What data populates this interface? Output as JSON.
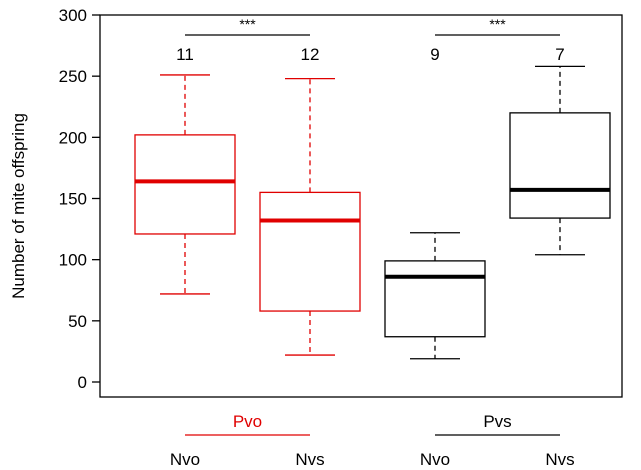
{
  "chart_data": {
    "type": "box",
    "title": "",
    "xlabel": "",
    "ylabel": "Number of mite offspring",
    "ylim": [
      0,
      300
    ],
    "yticks": [
      0,
      50,
      100,
      150,
      200,
      250,
      300
    ],
    "grid": false,
    "legend": "none",
    "boxes": [
      {
        "label": "Nvo",
        "group": "Pvo",
        "n": "11",
        "color": "#e00000",
        "whisker_low": 72,
        "q1": 121,
        "median": 164,
        "q3": 202,
        "whisker_high": 251
      },
      {
        "label": "Nvs",
        "group": "Pvo",
        "n": "12",
        "color": "#e00000",
        "whisker_low": 22,
        "q1": 58,
        "median": 132,
        "q3": 155,
        "whisker_high": 248
      },
      {
        "label": "Nvo",
        "group": "Pvs",
        "n": "9",
        "color": "#000000",
        "whisker_low": 19,
        "q1": 37,
        "median": 86,
        "q3": 99,
        "whisker_high": 122
      },
      {
        "label": "Nvs",
        "group": "Pvs",
        "n": "7",
        "color": "#000000",
        "whisker_low": 104,
        "q1": 134,
        "median": 157,
        "q3": 220,
        "whisker_high": 258
      }
    ],
    "groups": [
      {
        "label": "Pvo",
        "color": "#e00000"
      },
      {
        "label": "Pvs",
        "color": "#000000"
      }
    ],
    "significance": [
      {
        "label": "***"
      },
      {
        "label": "***"
      }
    ]
  }
}
